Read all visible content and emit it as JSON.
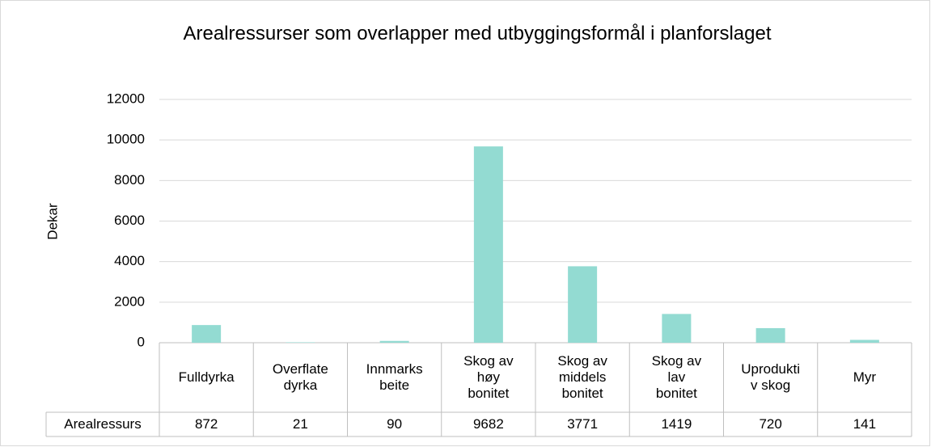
{
  "chart_data": {
    "type": "bar",
    "title": "Arealressurser som overlapper med utbyggingsformål i planforslaget",
    "y_label": "Dekar",
    "categories": [
      "Fulldyrka",
      "Overflate\ndyrka",
      "Innmarks\nbeite",
      "Skog av\nhøy\nbonitet",
      "Skog av\nmiddels\nbonitet",
      "Skog av\nlav\nbonitet",
      "Uprodukti\nv skog",
      "Myr"
    ],
    "series": [
      {
        "name": "Arealressurs",
        "color": "#93dbd2",
        "values": [
          872,
          21,
          90,
          9682,
          3771,
          1419,
          720,
          141
        ]
      }
    ],
    "ylim": [
      0,
      12000
    ],
    "yticks": [
      0,
      2000,
      4000,
      6000,
      8000,
      10000,
      12000
    ],
    "grid": true
  }
}
